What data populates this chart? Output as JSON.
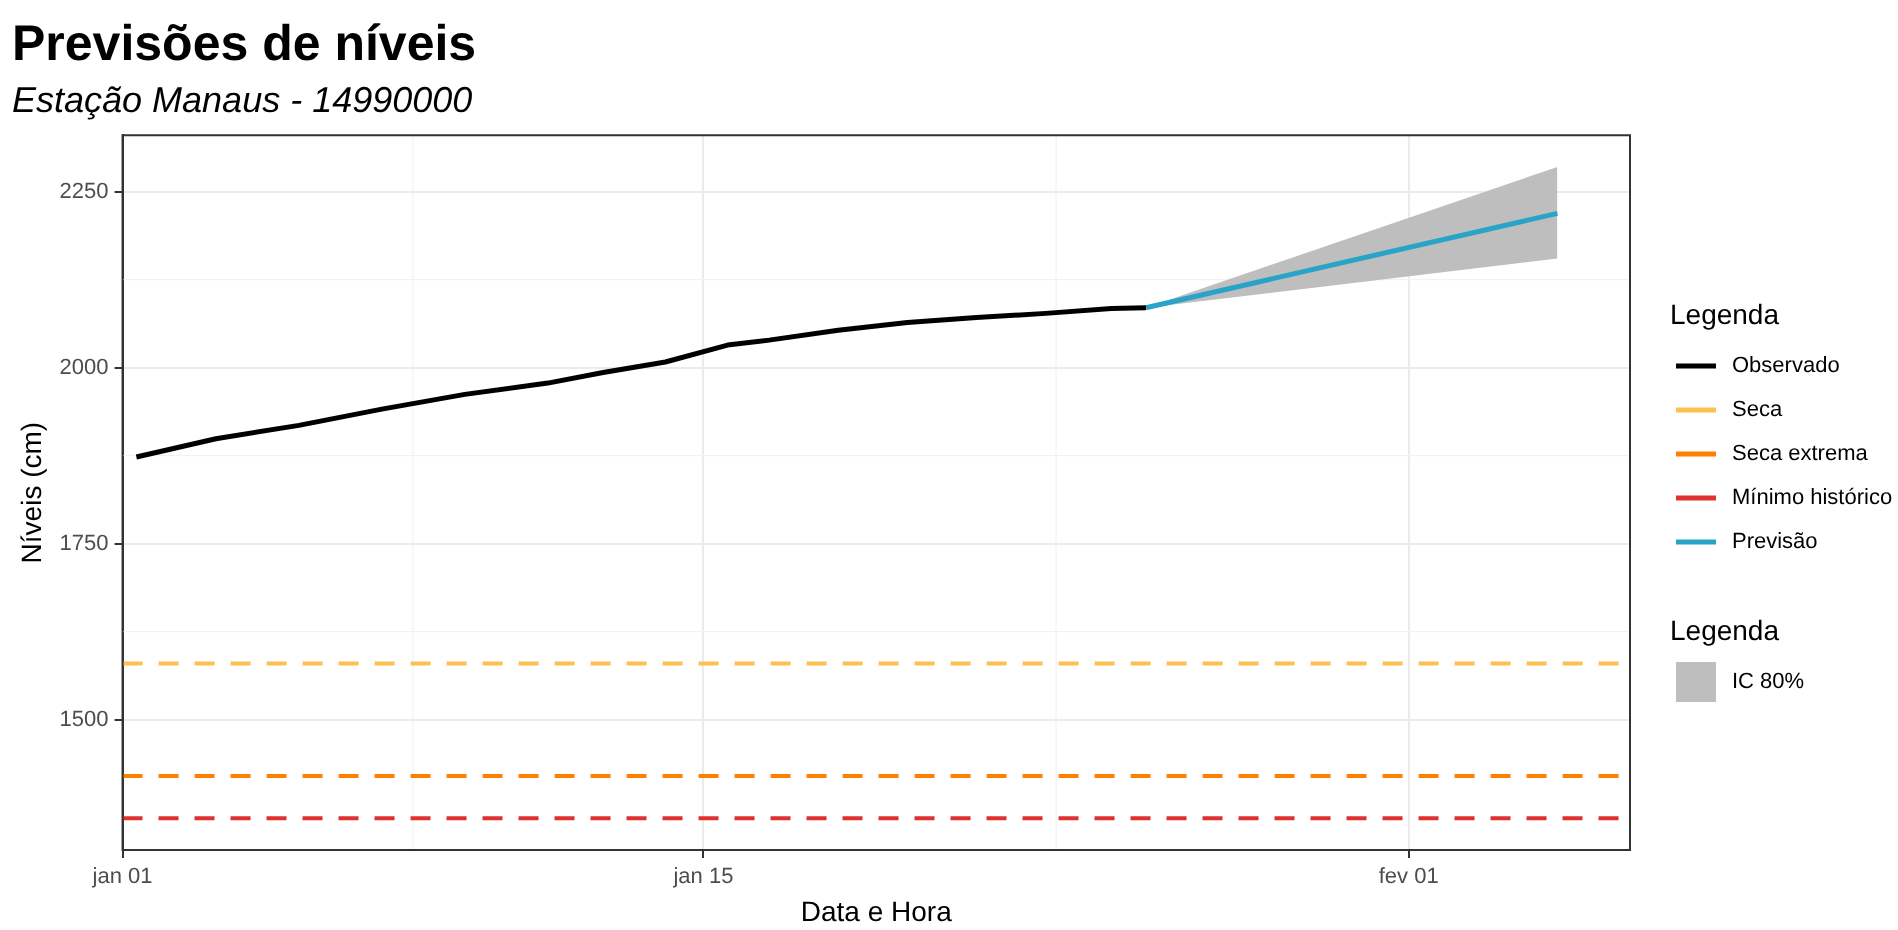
{
  "chart_data": {
    "type": "line",
    "title": "Previsões de níveis",
    "subtitle": "Estação Manaus - 14990000",
    "xlabel": "Data e Hora",
    "ylabel": "Níveis (cm)",
    "legend_title": "Legenda",
    "legend": "right",
    "xlim": [
      "--01-01",
      "--02-06T08:00"
    ],
    "xticks": [
      {
        "value": "--01-01",
        "label": "jan 01"
      },
      {
        "value": "--01-15",
        "label": "jan 15"
      },
      {
        "value": "--02-01",
        "label": "fev 01"
      }
    ],
    "ylim": [
      1315,
      2330
    ],
    "yticks": [
      1500,
      1750,
      2000,
      2250
    ],
    "grid": true,
    "line_style": "solid",
    "marker": "none",
    "series": [
      {
        "name": "Observado",
        "color": "#000000",
        "x": [
          "--01-01T08:00",
          "--01-03T06:00",
          "--01-05T06:00",
          "--01-07T06:00",
          "--01-09T06:00",
          "--01-11T06:00",
          "--01-12T14:00",
          "--01-14T02:00",
          "--01-15T14:00",
          "--01-16T14:00",
          "--01-18T06:00",
          "--01-19T22:00",
          "--01-21T14:00",
          "--01-23T06:00",
          "--01-24T20:00",
          "--01-25T16:00"
        ],
        "values": [
          1873,
          1899,
          1918,
          1941,
          1962,
          1978,
          1993,
          2008,
          2032,
          2039,
          2053,
          2064,
          2071,
          2077,
          2084,
          2085
        ]
      },
      {
        "name": "Previsão",
        "color": "#2aa3c8",
        "x": [
          "--01-25T16:00",
          "--02-04T14:00"
        ],
        "values": [
          2085,
          2219
        ],
        "lower": [
          2085,
          2155
        ],
        "upper": [
          2085,
          2285
        ]
      }
    ],
    "ref_lines": [
      {
        "axis": "y",
        "value": 1580,
        "label": "Seca",
        "color": "#fdbf50",
        "line_style": "dashed"
      },
      {
        "axis": "y",
        "value": 1420,
        "label": "Seca extrema",
        "color": "#ff8000",
        "line_style": "dashed"
      },
      {
        "axis": "y",
        "value": 1360,
        "label": "Mínimo histórico",
        "color": "#e03131",
        "line_style": "dashed"
      }
    ],
    "annotations": [
      "IC 80%"
    ]
  }
}
